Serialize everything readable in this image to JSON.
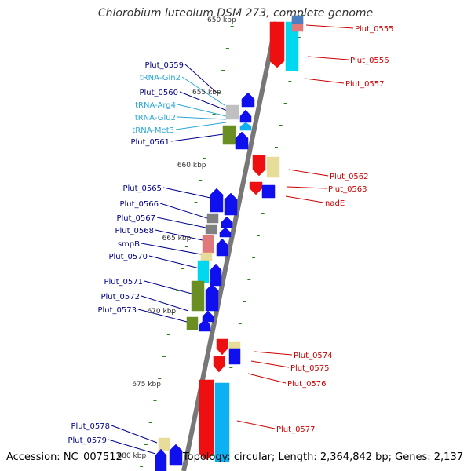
{
  "title": "Chlorobium luteolum DSM 273, complete genome",
  "footer": {
    "accession": "Accession: NC_007512",
    "summary": "Topology: circular; Length: 2,364,842 bp; Genes: 2,137"
  },
  "colors": {
    "backbone": "#777777",
    "tick": "#2d7d1e",
    "label_left": "#00008b",
    "label_trna": "#2aa7d6",
    "label_right": "#cc0000",
    "blue": "#1010ee",
    "olive": "#6b8e23",
    "cyan": "#00d8f0",
    "red": "#ee1010",
    "pink": "#e07a7a",
    "gray": "#808080",
    "lightgray": "#c0c0c0",
    "khaki": "#e8dc9a",
    "skyblue": "#0db0f0",
    "steel": "#4f7fc0"
  },
  "scale_labels": [
    {
      "text": "650 kbp",
      "pos_kbp": 650
    },
    {
      "text": "655 kbp",
      "pos_kbp": 655
    },
    {
      "text": "660 kbp",
      "pos_kbp": 660
    },
    {
      "text": "665 kbp",
      "pos_kbp": 665
    },
    {
      "text": "670 kbp",
      "pos_kbp": 670
    },
    {
      "text": "675 kbp",
      "pos_kbp": 675
    },
    {
      "text": "680 kbp",
      "pos_kbp": 680
    }
  ],
  "genes_left": [
    {
      "label": "Plut_0559",
      "type": "gene"
    },
    {
      "label": "tRNA-Gln2",
      "type": "trna"
    },
    {
      "label": "Plut_0560",
      "type": "gene"
    },
    {
      "label": "tRNA-Arg4",
      "type": "trna"
    },
    {
      "label": "tRNA-Glu2",
      "type": "trna"
    },
    {
      "label": "tRNA-Met3",
      "type": "trna"
    },
    {
      "label": "Plut_0561",
      "type": "gene"
    },
    {
      "label": "Plut_0565",
      "type": "gene"
    },
    {
      "label": "Plut_0566",
      "type": "gene"
    },
    {
      "label": "Plut_0567",
      "type": "gene"
    },
    {
      "label": "Plut_0568",
      "type": "gene"
    },
    {
      "label": "smpB",
      "type": "gene"
    },
    {
      "label": "Plut_0570",
      "type": "gene"
    },
    {
      "label": "Plut_0571",
      "type": "gene"
    },
    {
      "label": "Plut_0572",
      "type": "gene"
    },
    {
      "label": "Plut_0573",
      "type": "gene"
    },
    {
      "label": "Plut_0578",
      "type": "gene"
    },
    {
      "label": "Plut_0579",
      "type": "gene"
    }
  ],
  "genes_right": [
    {
      "label": "Plut_0555"
    },
    {
      "label": "Plut_0556"
    },
    {
      "label": "Plut_0557"
    },
    {
      "label": "Plut_0562"
    },
    {
      "label": "Plut_0563"
    },
    {
      "label": "nadE"
    },
    {
      "label": "Plut_0574"
    },
    {
      "label": "Plut_0575"
    },
    {
      "label": "Plut_0576"
    },
    {
      "label": "Plut_0577"
    }
  ]
}
